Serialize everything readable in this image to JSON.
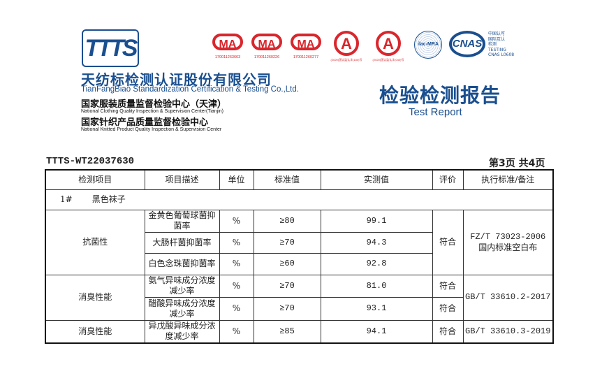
{
  "header": {
    "logo": "TTTS",
    "company_cn": "天纺标检测认证股份有限公司",
    "company_en": "TianFangBiao Standardization Certification & Testing Co.,Ltd.",
    "center1_cn": "国家服装质量监督检验中心（天津）",
    "center1_en": "National Clothing Quality Inspection & Supervision Center(Tianjin)",
    "center2_cn": "国家针织产品质量监督检验中心",
    "center2_en": "National Knitted Product Quality Inspection & Supervision Center",
    "cma_numbers": [
      "170011263663",
      "170011260226",
      "170011260277"
    ],
    "cal_labels": [
      "(2020)国认监认字(180)号",
      "(2020)国认监认字(040)号"
    ],
    "ilac": "ilac-MRA",
    "cnas": "CNAS",
    "cnas_text": [
      "中国认可",
      "国际互认",
      "检测",
      "TESTING",
      "CNAS L0608"
    ],
    "title_cn": "检验检测报告",
    "title_en": "Test Report",
    "colors": {
      "brand_blue": "#1a4f8f",
      "seal_red": "#d9262c"
    }
  },
  "report_no": "TTTS-WT22037630",
  "page_info": "第3页  共4页",
  "table": {
    "headers": [
      "检测项目",
      "项目描述",
      "单位",
      "标准值",
      "实测值",
      "评价",
      "执行标准/备注"
    ],
    "sample": {
      "id": "1#",
      "name": "黑色袜子"
    },
    "groups": [
      {
        "item": "抗菌性",
        "rows": [
          {
            "desc": "金黄色葡萄球菌抑菌率",
            "unit": "%",
            "std": "≥80",
            "value": "99.1"
          },
          {
            "desc": "大肠杆菌抑菌率",
            "unit": "%",
            "std": "≥70",
            "value": "94.3"
          },
          {
            "desc": "白色念珠菌抑菌率",
            "unit": "%",
            "std": "≥60",
            "value": "92.8"
          }
        ],
        "result": "符合",
        "standard": "FZ/T 73023-2006",
        "note": "国内标准空白布"
      },
      {
        "item": "消臭性能",
        "rows": [
          {
            "desc": "氨气异味成分浓度减少率",
            "unit": "%",
            "std": "≥70",
            "value": "81.0",
            "result": "符合"
          },
          {
            "desc": "醋酸异味成分浓度减少率",
            "unit": "%",
            "std": "≥70",
            "value": "93.1",
            "result": "符合"
          }
        ],
        "standard": "GB/T 33610.2-2017"
      },
      {
        "item": "消臭性能",
        "rows": [
          {
            "desc": "异戊酸异味成分浓度减少率",
            "unit": "%",
            "std": "≥85",
            "value": "94.1",
            "result": "符合"
          }
        ],
        "standard": "GB/T 33610.3-2019"
      }
    ]
  }
}
